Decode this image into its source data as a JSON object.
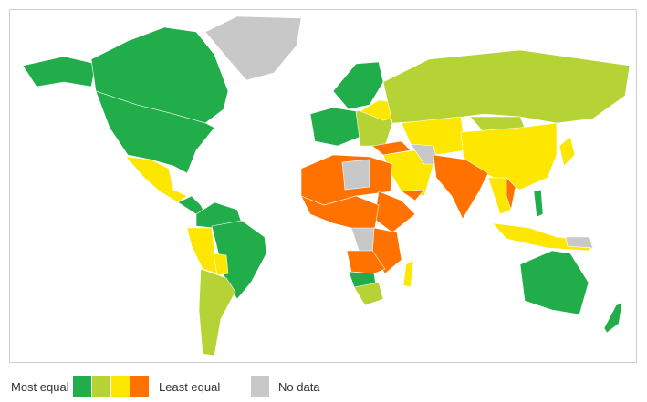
{
  "legend": {
    "low_label": "Most equal",
    "high_label": "Least equal",
    "no_data_label": "No data",
    "colors": [
      "#22ad4b",
      "#b5d334",
      "#fde600",
      "#ff7200"
    ],
    "no_data_color": "#c8c8c8"
  }
}
